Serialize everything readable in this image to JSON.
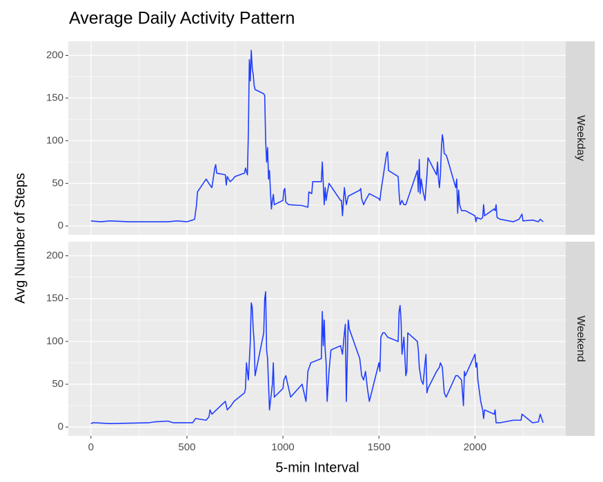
{
  "chart_data": {
    "type": "line",
    "title": "Average Daily Activity Pattern",
    "x_label": "5-min Interval",
    "y_label": "Avg Number of Steps",
    "xlim": [
      -117.75,
      2472.75
    ],
    "xticks": [
      0,
      500,
      1000,
      1500,
      2000
    ],
    "ylim": [
      -10.3,
      216.5
    ],
    "yticks": [
      0,
      50,
      100,
      150,
      200
    ],
    "grid": true,
    "series": [
      {
        "name": "Weekday",
        "color": "#1f3dff",
        "x": [
          0,
          50,
          100,
          200,
          300,
          400,
          450,
          500,
          530,
          540,
          550,
          555,
          600,
          620,
          630,
          645,
          650,
          655,
          700,
          705,
          710,
          725,
          740,
          750,
          800,
          805,
          815,
          820,
          825,
          830,
          835,
          840,
          845,
          850,
          855,
          900,
          905,
          910,
          915,
          920,
          925,
          930,
          935,
          940,
          945,
          950,
          955,
          1000,
          1005,
          1010,
          1015,
          1030,
          1100,
          1130,
          1135,
          1150,
          1155,
          1200,
          1205,
          1210,
          1215,
          1220,
          1225,
          1230,
          1240,
          1300,
          1305,
          1310,
          1320,
          1330,
          1340,
          1400,
          1405,
          1410,
          1420,
          1430,
          1450,
          1500,
          1505,
          1510,
          1540,
          1545,
          1550,
          1600,
          1605,
          1610,
          1620,
          1630,
          1640,
          1700,
          1705,
          1710,
          1715,
          1720,
          1730,
          1740,
          1750,
          1755,
          1800,
          1805,
          1810,
          1815,
          1820,
          1825,
          1830,
          1835,
          1840,
          1850,
          1855,
          1900,
          1905,
          1910,
          1915,
          1920,
          1930,
          1950,
          2000,
          2005,
          2010,
          2030,
          2040,
          2045,
          2050,
          2100,
          2105,
          2110,
          2115,
          2130,
          2200,
          2230,
          2240,
          2245,
          2250,
          2300,
          2330,
          2340,
          2355
        ],
        "values": [
          6,
          5,
          6,
          5,
          5,
          5,
          6,
          5,
          7,
          8,
          25,
          40,
          55,
          48,
          45,
          68,
          72,
          62,
          60,
          48,
          58,
          52,
          55,
          58,
          62,
          68,
          60,
          110,
          195,
          170,
          206,
          185,
          178,
          165,
          160,
          155,
          153,
          100,
          75,
          92,
          55,
          65,
          40,
          20,
          30,
          37,
          25,
          30,
          42,
          44,
          28,
          25,
          24,
          22,
          40,
          38,
          52,
          52,
          75,
          50,
          25,
          45,
          30,
          38,
          50,
          30,
          30,
          12,
          45,
          25,
          35,
          42,
          44,
          32,
          25,
          30,
          38,
          32,
          30,
          40,
          85,
          87,
          65,
          58,
          38,
          25,
          30,
          25,
          25,
          65,
          40,
          78,
          38,
          55,
          40,
          30,
          60,
          80,
          60,
          75,
          55,
          45,
          60,
          90,
          107,
          100,
          85,
          83,
          80,
          45,
          55,
          15,
          42,
          25,
          18,
          18,
          12,
          5,
          10,
          8,
          10,
          25,
          12,
          20,
          18,
          25,
          10,
          8,
          5,
          8,
          12,
          14,
          6,
          7,
          5,
          8,
          5
        ]
      },
      {
        "name": "Weekend",
        "color": "#1f3dff",
        "x": [
          0,
          10,
          20,
          100,
          300,
          330,
          400,
          430,
          500,
          530,
          545,
          600,
          615,
          620,
          630,
          700,
          710,
          730,
          745,
          800,
          805,
          810,
          820,
          830,
          835,
          840,
          845,
          850,
          855,
          900,
          905,
          910,
          915,
          920,
          930,
          935,
          940,
          945,
          950,
          955,
          1000,
          1005,
          1015,
          1020,
          1030,
          1040,
          1100,
          1120,
          1130,
          1145,
          1200,
          1205,
          1210,
          1215,
          1220,
          1225,
          1230,
          1240,
          1250,
          1300,
          1310,
          1320,
          1325,
          1330,
          1340,
          1345,
          1400,
          1410,
          1420,
          1430,
          1440,
          1450,
          1500,
          1505,
          1510,
          1520,
          1530,
          1545,
          1600,
          1605,
          1610,
          1615,
          1620,
          1630,
          1640,
          1645,
          1650,
          1700,
          1705,
          1710,
          1720,
          1730,
          1740,
          1745,
          1750,
          1755,
          1800,
          1815,
          1820,
          1830,
          1840,
          1850,
          1900,
          1910,
          1930,
          1940,
          1945,
          1950,
          2000,
          2005,
          2010,
          2015,
          2030,
          2040,
          2045,
          2050,
          2100,
          2105,
          2110,
          2130,
          2200,
          2240,
          2245,
          2300,
          2330,
          2340,
          2355
        ],
        "values": [
          4,
          5,
          5,
          4,
          5,
          6,
          7,
          5,
          5,
          5,
          10,
          8,
          12,
          20,
          15,
          30,
          20,
          25,
          30,
          40,
          45,
          75,
          55,
          100,
          145,
          140,
          115,
          100,
          60,
          110,
          150,
          158,
          90,
          80,
          20,
          30,
          40,
          50,
          75,
          35,
          45,
          55,
          60,
          55,
          45,
          35,
          50,
          30,
          65,
          75,
          80,
          135,
          95,
          125,
          90,
          75,
          30,
          65,
          90,
          95,
          85,
          110,
          120,
          30,
          125,
          115,
          80,
          60,
          55,
          65,
          45,
          30,
          75,
          65,
          105,
          110,
          110,
          105,
          100,
          135,
          142,
          125,
          85,
          105,
          60,
          65,
          110,
          100,
          90,
          70,
          55,
          50,
          75,
          85,
          40,
          45,
          65,
          70,
          75,
          70,
          40,
          35,
          60,
          60,
          55,
          25,
          65,
          60,
          85,
          70,
          75,
          55,
          30,
          20,
          10,
          20,
          15,
          20,
          5,
          5,
          8,
          8,
          15,
          5,
          6,
          15,
          5
        ]
      }
    ]
  }
}
